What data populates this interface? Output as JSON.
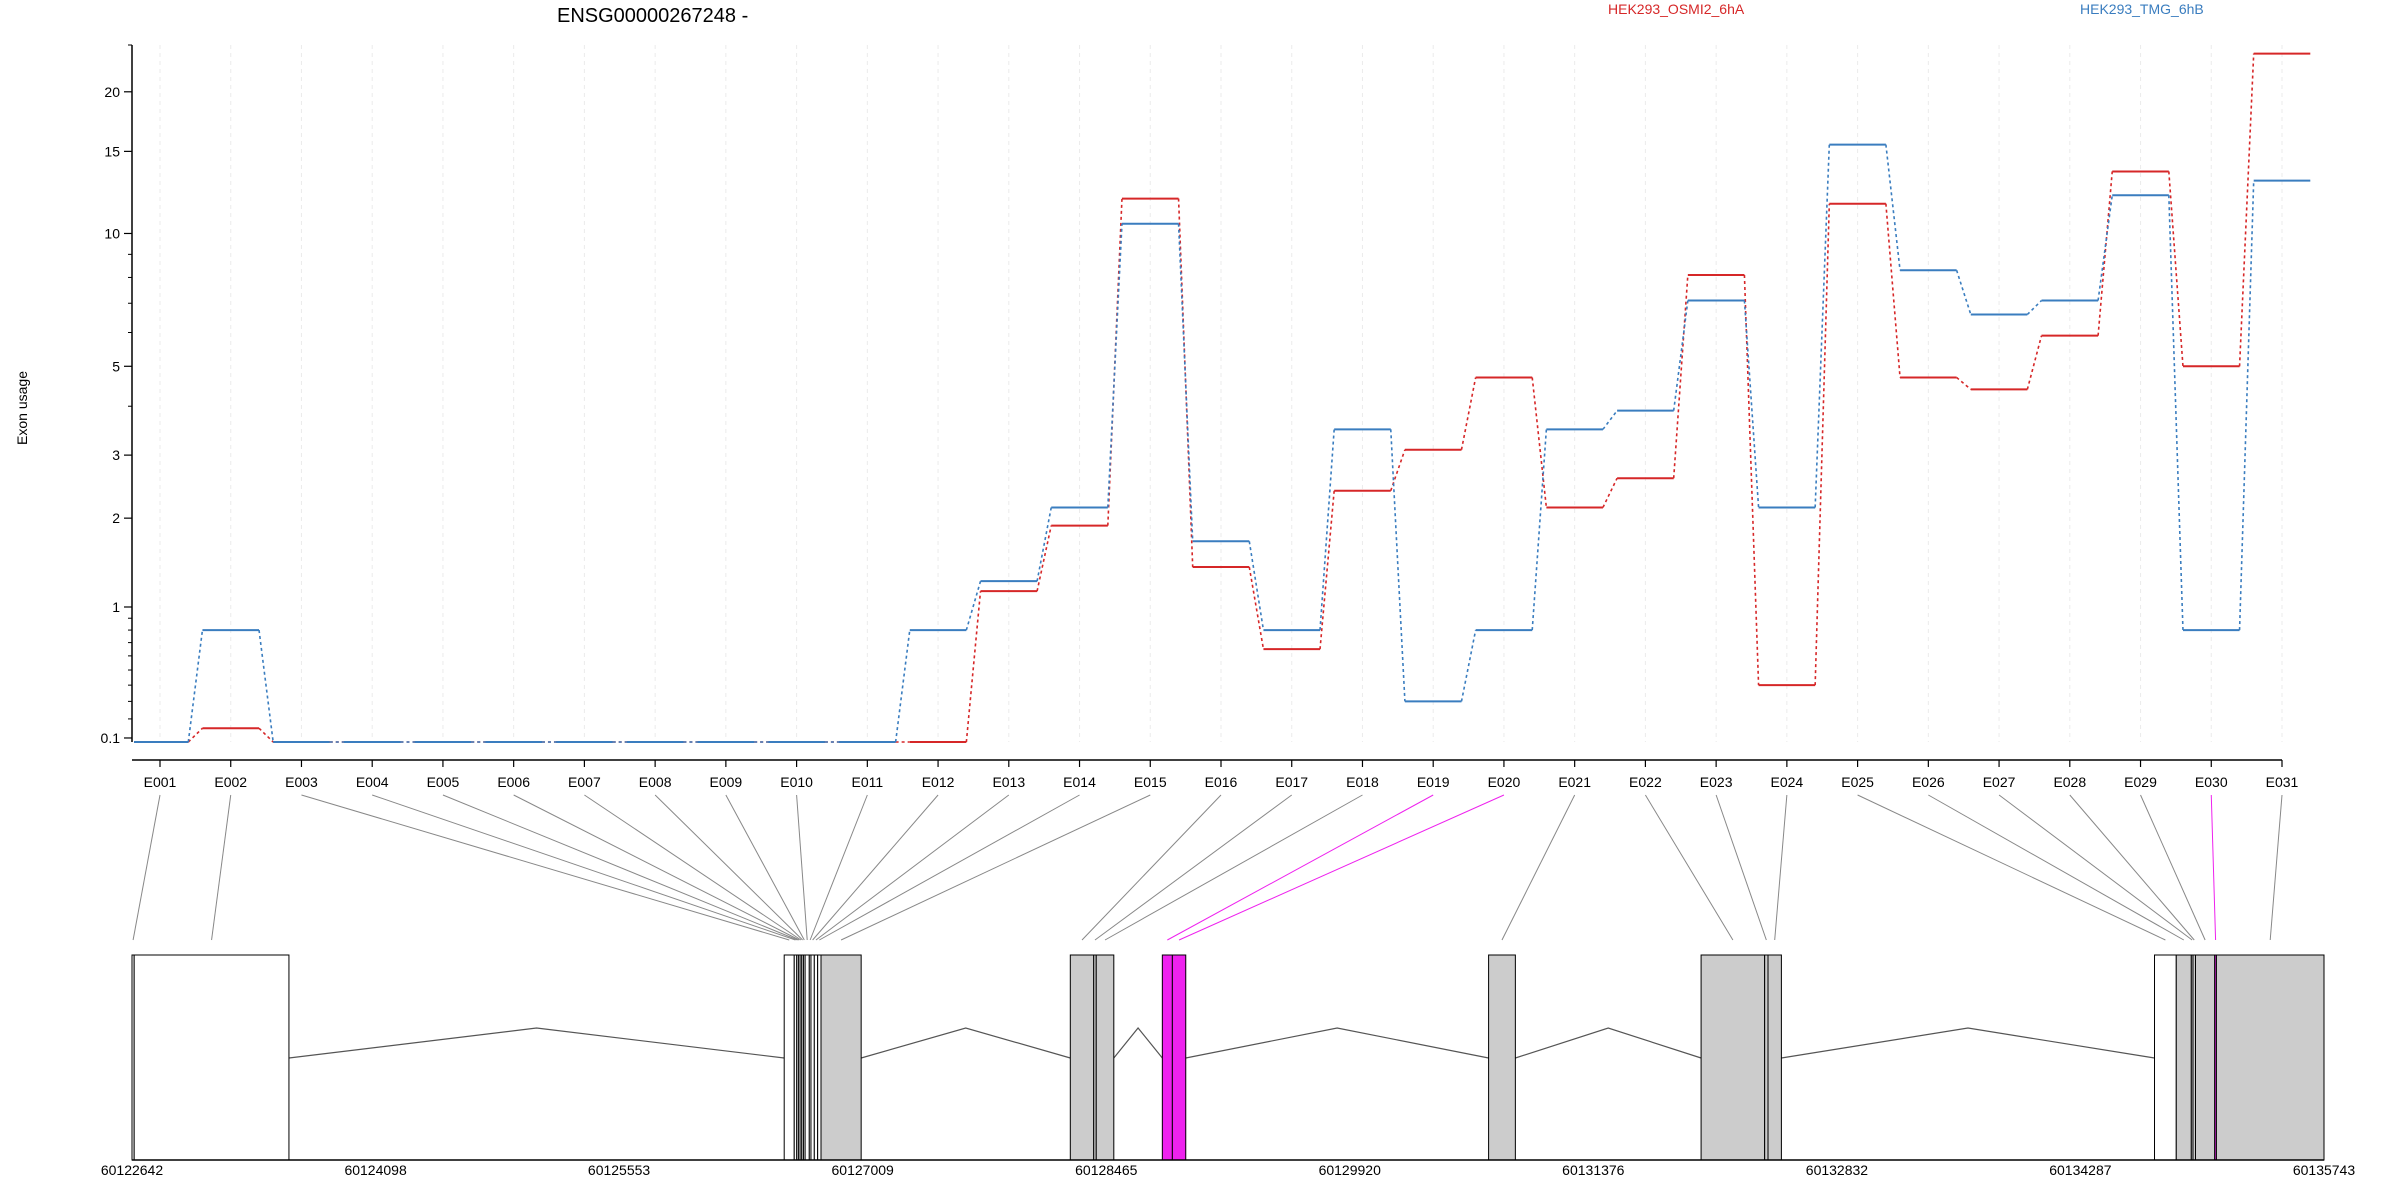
{
  "chart_data": {
    "type": "line",
    "title": "ENSG00000267248 -",
    "ylabel": "Exon usage",
    "xlabel": "",
    "y_scale": "log(1+y)",
    "ylim": [
      0.08,
      25
    ],
    "y_ticks": [
      "0.1",
      "1",
      "2",
      "3",
      "5",
      "10",
      "15",
      "20"
    ],
    "grid_vertical": true,
    "legend_placement": "top-right",
    "categories": [
      "E001",
      "E002",
      "E003",
      "E004",
      "E005",
      "E006",
      "E007",
      "E008",
      "E009",
      "E010",
      "E011",
      "E012",
      "E013",
      "E014",
      "E015",
      "E016",
      "E017",
      "E018",
      "E019",
      "E020",
      "E021",
      "E022",
      "E023",
      "E024",
      "E025",
      "E026",
      "E027",
      "E028",
      "E029",
      "E030",
      "E031"
    ],
    "series": [
      {
        "name": "HEK293_OSMI2_6hA",
        "color": "#d62728",
        "values": [
          0.08,
          0.15,
          0.08,
          0.08,
          0.08,
          0.08,
          0.08,
          0.08,
          0.08,
          0.08,
          0.08,
          0.08,
          1.15,
          1.9,
          11.9,
          1.4,
          0.65,
          2.4,
          3.1,
          4.7,
          2.15,
          2.6,
          8.1,
          0.4,
          11.6,
          4.7,
          4.4,
          5.9,
          13.6,
          5.0,
          24.0
        ]
      },
      {
        "name": "HEK293_TMG_6hB",
        "color": "#3a7dbf",
        "values": [
          0.08,
          0.8,
          0.08,
          0.08,
          0.08,
          0.08,
          0.08,
          0.08,
          0.08,
          0.08,
          0.08,
          0.8,
          1.25,
          2.15,
          10.5,
          1.7,
          0.8,
          3.5,
          0.3,
          0.8,
          3.5,
          3.9,
          7.1,
          2.15,
          15.5,
          8.3,
          6.6,
          7.1,
          12.1,
          0.8,
          13.0
        ]
      }
    ],
    "gene_model": {
      "coord_ticks": [
        "60122642",
        "60124098",
        "60125553",
        "60127009",
        "60128465",
        "60129920",
        "60131376",
        "60132832",
        "60134287",
        "60135743"
      ],
      "coord_range": [
        60122642,
        60135743
      ],
      "highlight_color": "#ee22ee",
      "feature_fill": "#cccccc",
      "exons": [
        {
          "id": "E001",
          "start": 60122642,
          "end": 60122655,
          "fill": "#ffffff"
        },
        {
          "id": "E002",
          "start": 60122655,
          "end": 60123580,
          "fill": "#ffffff"
        },
        {
          "id": "E003",
          "start": 60126540,
          "end": 60126600,
          "fill": "#ffffff"
        },
        {
          "id": "E004",
          "start": 60126600,
          "end": 60126615,
          "fill": "#ffffff"
        },
        {
          "id": "E005",
          "start": 60126615,
          "end": 60126625,
          "fill": "#ffffff"
        },
        {
          "id": "E006",
          "start": 60126625,
          "end": 60126635,
          "fill": "#ffffff"
        },
        {
          "id": "E007",
          "start": 60126635,
          "end": 60126645,
          "fill": "#ffffff"
        },
        {
          "id": "E008",
          "start": 60126645,
          "end": 60126655,
          "fill": "#ffffff"
        },
        {
          "id": "E009",
          "start": 60126655,
          "end": 60126665,
          "fill": "#ffffff"
        },
        {
          "id": "E010",
          "start": 60126665,
          "end": 60126690,
          "fill": "#ffffff"
        },
        {
          "id": "E011",
          "start": 60126690,
          "end": 60126700,
          "fill": "#ffffff"
        },
        {
          "id": "E012",
          "start": 60126700,
          "end": 60126720,
          "fill": "#ffffff"
        },
        {
          "id": "E013",
          "start": 60126720,
          "end": 60126740,
          "fill": "#ffffff"
        },
        {
          "id": "E014",
          "start": 60126740,
          "end": 60126760,
          "fill": "#ffffff"
        },
        {
          "id": "E015",
          "start": 60126760,
          "end": 60127000,
          "fill": "#cccccc"
        },
        {
          "id": "E016",
          "start": 60128250,
          "end": 60128390,
          "fill": "#cccccc"
        },
        {
          "id": "E017",
          "start": 60128390,
          "end": 60128405,
          "fill": "#cccccc"
        },
        {
          "id": "E018",
          "start": 60128405,
          "end": 60128510,
          "fill": "#cccccc"
        },
        {
          "id": "E019",
          "start": 60128800,
          "end": 60128860,
          "fill": "#ee22ee"
        },
        {
          "id": "E020",
          "start": 60128860,
          "end": 60128940,
          "fill": "#ee22ee"
        },
        {
          "id": "E021",
          "start": 60130750,
          "end": 60130910,
          "fill": "#cccccc"
        },
        {
          "id": "E022",
          "start": 60132020,
          "end": 60132400,
          "fill": "#cccccc"
        },
        {
          "id": "E023",
          "start": 60132400,
          "end": 60132420,
          "fill": "#cccccc"
        },
        {
          "id": "E024",
          "start": 60132420,
          "end": 60132500,
          "fill": "#cccccc"
        },
        {
          "id": "E025",
          "start": 60134730,
          "end": 60134860,
          "fill": "#ffffff"
        },
        {
          "id": "E026",
          "start": 60134860,
          "end": 60134950,
          "fill": "#cccccc"
        },
        {
          "id": "E027",
          "start": 60134950,
          "end": 60134960,
          "fill": "#cccccc"
        },
        {
          "id": "E028",
          "start": 60134960,
          "end": 60134975,
          "fill": "#cccccc"
        },
        {
          "id": "E029",
          "start": 60134975,
          "end": 60135090,
          "fill": "#cccccc"
        },
        {
          "id": "E030",
          "start": 60135090,
          "end": 60135100,
          "fill": "#ee22ee"
        },
        {
          "id": "E031",
          "start": 60135100,
          "end": 60135743,
          "fill": "#cccccc"
        }
      ],
      "introns": [
        [
          60123580,
          60126540
        ],
        [
          60127000,
          60128250
        ],
        [
          60128510,
          60128800
        ],
        [
          60128940,
          60130750
        ],
        [
          60130910,
          60132020
        ],
        [
          60132500,
          60134730
        ]
      ]
    }
  }
}
